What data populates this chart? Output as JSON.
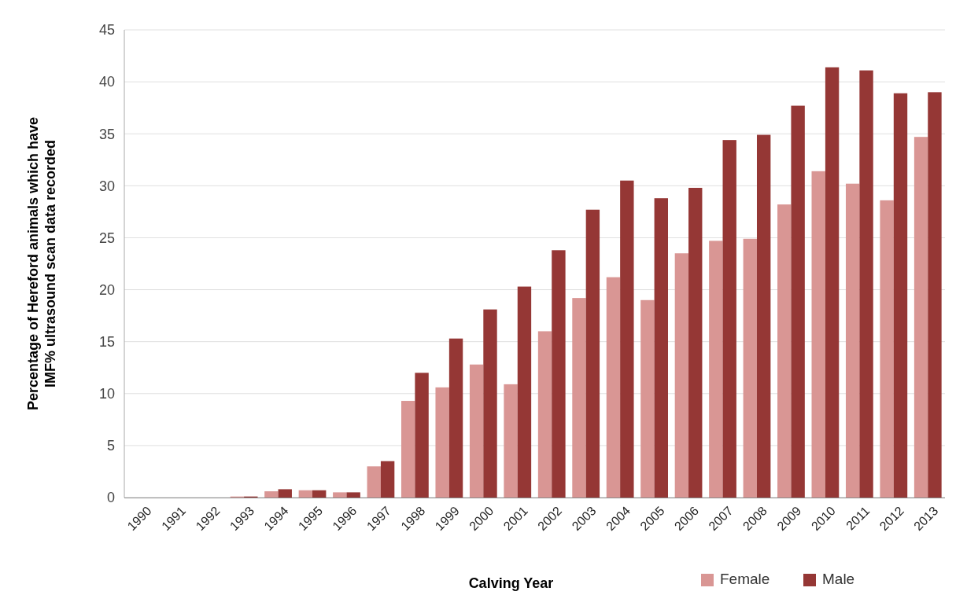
{
  "chart_data": {
    "type": "bar",
    "xlabel": "Calving Year",
    "ylabel": "Percentage of Hereford animals which have IMF% ultrasound scan data recorded",
    "categories": [
      "1990",
      "1991",
      "1992",
      "1993",
      "1994",
      "1995",
      "1996",
      "1997",
      "1998",
      "1999",
      "2000",
      "2001",
      "2002",
      "2003",
      "2004",
      "2005",
      "2006",
      "2007",
      "2008",
      "2009",
      "2010",
      "2011",
      "2012",
      "2013"
    ],
    "series": [
      {
        "name": "Female",
        "color": "#d99694",
        "values": [
          0,
          0,
          0,
          0.1,
          0.6,
          0.7,
          0.5,
          3.0,
          9.3,
          10.6,
          12.8,
          10.9,
          16.0,
          19.2,
          21.2,
          19.0,
          23.5,
          24.7,
          24.9,
          28.2,
          31.4,
          30.2,
          28.6,
          34.7
        ]
      },
      {
        "name": "Male",
        "color": "#953735",
        "values": [
          0,
          0,
          0,
          0.1,
          0.8,
          0.7,
          0.5,
          3.5,
          12.0,
          15.3,
          18.1,
          20.3,
          23.8,
          27.7,
          30.5,
          28.8,
          29.8,
          34.4,
          34.9,
          37.7,
          41.4,
          41.1,
          38.9,
          39.0
        ]
      }
    ],
    "ylim": [
      0,
      45
    ],
    "yticks": [
      0,
      5,
      10,
      15,
      20,
      25,
      30,
      35,
      40,
      45
    ],
    "grid": "y",
    "legend": "bottom right"
  }
}
